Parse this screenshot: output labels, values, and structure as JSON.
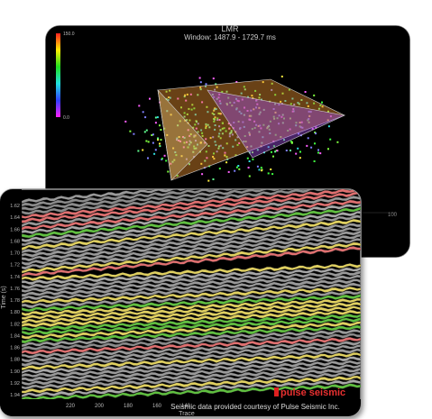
{
  "back_panel": {
    "title": "LMR",
    "window": "Window: 1487.9 - 1729.7 ms",
    "colorbar": {
      "max": "150.0",
      "min": "0.0"
    },
    "x_tick": "100"
  },
  "front_panel": {
    "y_axis_label": "Time (s)",
    "y_ticks": [
      "1.62",
      "1.64",
      "1.66",
      "1.68",
      "1.70",
      "1.72",
      "1.74",
      "1.76",
      "1.78",
      "1.80",
      "1.82",
      "1.84",
      "1.86",
      "1.88",
      "1.90",
      "1.92",
      "1.94"
    ],
    "x_axis_label": "Trace",
    "x_ticks": [
      "220",
      "200",
      "180",
      "160",
      "140"
    ],
    "credit": "Seismic data provided courtesy of Pulse Seismic Inc.",
    "logo": "pulse seismic"
  }
}
